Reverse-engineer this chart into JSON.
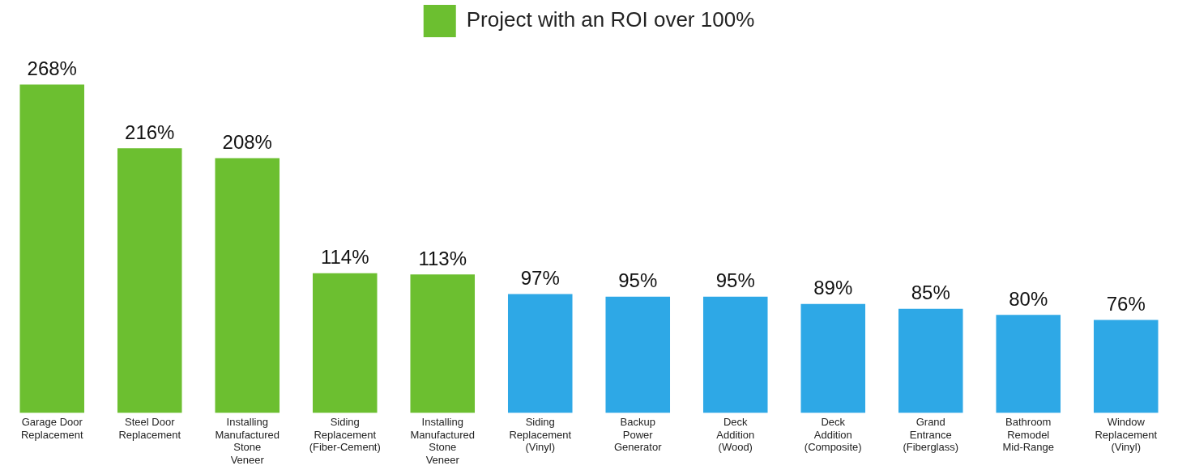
{
  "chart_data": {
    "type": "bar",
    "categories": [
      "Garage Door Replacement",
      "Steel Door Replacement",
      "Installing Manufactured Stone Veneer",
      "Siding Replacement (Fiber-Cement)",
      "Installing Manufactured Stone Veneer",
      "Siding Replacement (Vinyl)",
      "Backup Power Generator",
      "Deck Addition (Wood)",
      "Deck Addition (Composite)",
      "Grand Entrance (Fiberglass)",
      "Bathroom Remodel Mid-Range",
      "Window Replacement (Vinyl)"
    ],
    "series": [
      {
        "name": "Project with an ROI over 100%",
        "color": "#6cbf30",
        "values": [
          268,
          216,
          208,
          114,
          113,
          null,
          null,
          null,
          null,
          null,
          null,
          null
        ],
        "value_labels": [
          "268%",
          "216%",
          "208%",
          "114%",
          "113%",
          null,
          null,
          null,
          null,
          null,
          null,
          null
        ]
      },
      {
        "color": "#2ea8e6",
        "values": [
          null,
          null,
          null,
          null,
          null,
          97,
          95,
          95,
          89,
          85,
          80,
          76
        ],
        "value_labels": [
          null,
          null,
          null,
          null,
          null,
          "97%",
          "95%",
          "95%",
          "89%",
          "85%",
          "80%",
          "76%"
        ]
      }
    ],
    "tick_labels": "x",
    "grid": false,
    "legend": "top"
  }
}
